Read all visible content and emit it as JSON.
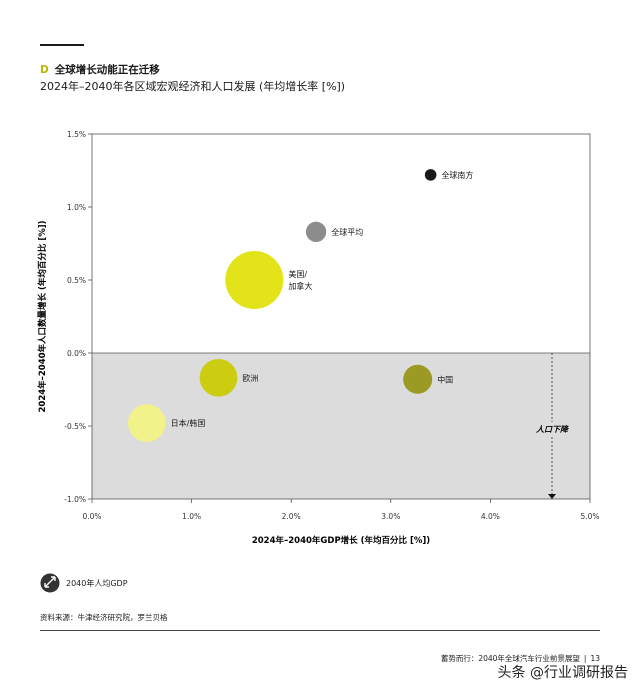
{
  "heading": {
    "letter": "D",
    "text": "全球增长动能正在迁移"
  },
  "subtitle": "2024年–2040年各区域宏观经济和人口发展 (年均增长率 [%])",
  "colors": {
    "yellow": "#e3e31a",
    "yellow_dark": "#cccc10",
    "yellow_light": "#f2f28a",
    "olive": "#9a9a24",
    "black": "#1a1a1a",
    "gray": "#8c8c8c",
    "neg_bg": "#dcdcdc"
  },
  "chart_data": {
    "type": "scatter",
    "xlabel": "2024年–2040年GDP增长 (年均百分比 [%])",
    "ylabel": "2024年–2040年人口数量增长 (年均百分比 [%])",
    "xlim": [
      0,
      5
    ],
    "ylim": [
      -1,
      1.5
    ],
    "xticks": [
      "0.0%",
      "1.0%",
      "2.0%",
      "3.0%",
      "4.0%",
      "5.0%"
    ],
    "yticks": [
      "1.5%",
      "1.0%",
      "0.5%",
      "0.0%",
      "-0.5%",
      "-1.0%"
    ],
    "points": [
      {
        "name": "全球南方",
        "x": 3.4,
        "y": 1.22,
        "size_rel": 0.2,
        "color": "#1a1a1a"
      },
      {
        "name": "全球平均",
        "x": 2.25,
        "y": 0.83,
        "size_rel": 0.35,
        "color": "#8c8c8c"
      },
      {
        "name": "美国/加拿大",
        "x": 1.63,
        "y": 0.5,
        "size_rel": 1.0,
        "color": "#e3e31a"
      },
      {
        "name": "欧洲",
        "x": 1.27,
        "y": -0.17,
        "size_rel": 0.65,
        "color": "#cccc10"
      },
      {
        "name": "中国",
        "x": 3.27,
        "y": -0.18,
        "size_rel": 0.5,
        "color": "#9a9a24"
      },
      {
        "name": "日本/韩国",
        "x": 0.55,
        "y": -0.48,
        "size_rel": 0.65,
        "color": "#f2f28a"
      }
    ],
    "annotation": "人口下降",
    "legend": "2040年人均GDP"
  },
  "source": "资料来源：牛津经济研究院，罗兰贝格",
  "footer": {
    "left": "蓄势而行：2040年全球汽车行业前景展望",
    "page": "13"
  },
  "watermark": "头条 @行业调研报告"
}
